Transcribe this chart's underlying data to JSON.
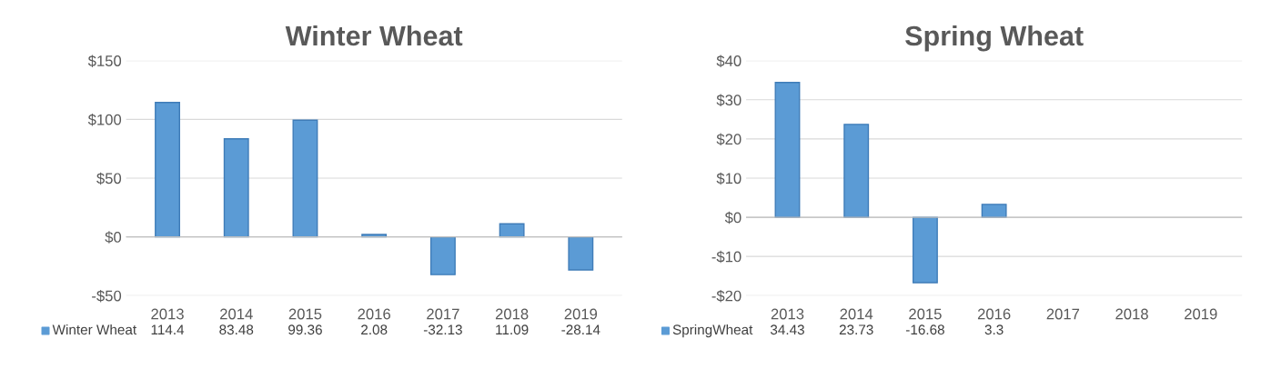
{
  "chart_data": [
    {
      "type": "bar",
      "title": "Winter Wheat",
      "categories": [
        "2013",
        "2014",
        "2015",
        "2016",
        "2017",
        "2018",
        "2019"
      ],
      "series": [
        {
          "name": "Winter Wheat",
          "color": "#5b9bd5",
          "values": [
            114.4,
            83.48,
            99.36,
            2.08,
            -32.13,
            11.09,
            -28.14
          ]
        }
      ],
      "ylim": [
        -50,
        150
      ],
      "yticks": [
        {
          "value": -50,
          "label": "-$50"
        },
        {
          "value": 0,
          "label": "$0"
        },
        {
          "value": 50,
          "label": "$50"
        },
        {
          "value": 100,
          "label": "$100"
        },
        {
          "value": 150,
          "label": "$150"
        }
      ],
      "grid": "y",
      "data_labels": true
    },
    {
      "type": "bar",
      "title": "Spring Wheat",
      "categories": [
        "2013",
        "2014",
        "2015",
        "2016",
        "2017",
        "2018",
        "2019"
      ],
      "series": [
        {
          "name": "SpringWheat",
          "color": "#5b9bd5",
          "values": [
            34.43,
            23.73,
            -16.68,
            3.3,
            null,
            null,
            null
          ]
        }
      ],
      "ylim": [
        -20,
        40
      ],
      "yticks": [
        {
          "value": -20,
          "label": "-$20"
        },
        {
          "value": -10,
          "label": "-$10"
        },
        {
          "value": 0,
          "label": "$0"
        },
        {
          "value": 10,
          "label": "$10"
        },
        {
          "value": 20,
          "label": "$20"
        },
        {
          "value": 30,
          "label": "$30"
        },
        {
          "value": 40,
          "label": "$40"
        }
      ],
      "grid": "y",
      "data_labels": true
    }
  ]
}
